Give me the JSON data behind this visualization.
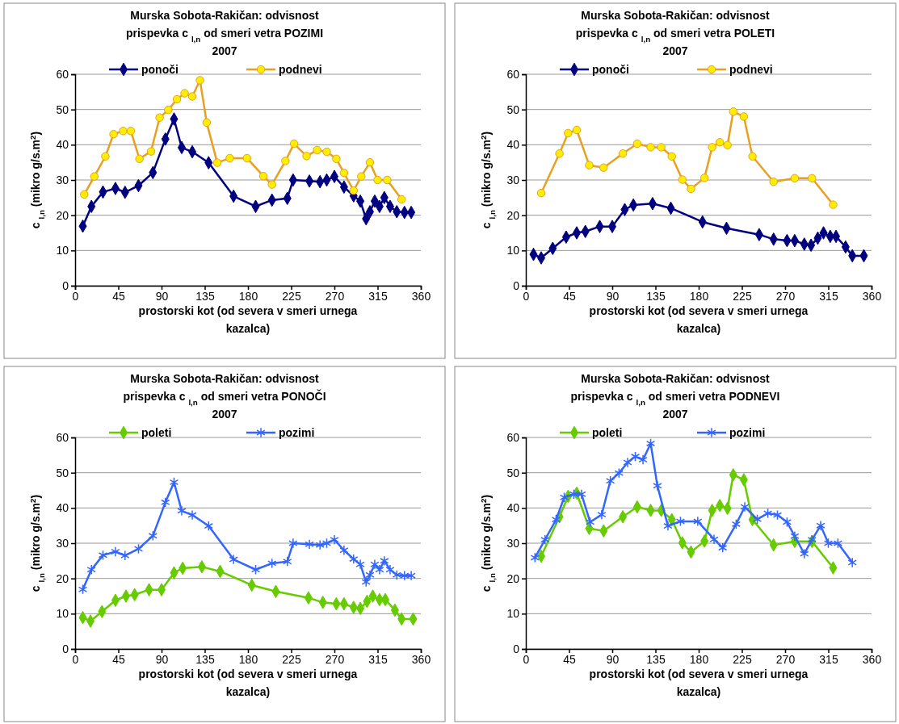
{
  "chart_data": [
    {
      "type": "line",
      "title": "Murska Sobota-Rakičan: odvisnost prispevka c $_{l,n}$ od smeri vetra POZIMI 2007",
      "xlabel": "prostorski kot (od severa v smeri urnega kazalca)",
      "ylabel": "c $_{l,n}$ (mikro g/s.m$^{2}$)",
      "xlim": [
        0,
        360
      ],
      "xticks": [
        0,
        45,
        90,
        135,
        180,
        225,
        270,
        315,
        360
      ],
      "ylim": [
        0,
        60
      ],
      "yticks": [
        0,
        10,
        20,
        30,
        40,
        50,
        60
      ],
      "grid": "y",
      "legend": "top",
      "series": [
        {
          "name": "ponoči",
          "color": "#000080",
          "marker": "diamond",
          "x": [
            8,
            17,
            29,
            42,
            52,
            66,
            81,
            94,
            103,
            111,
            122,
            139,
            165,
            188,
            205,
            221,
            227,
            244,
            255,
            262,
            270,
            280,
            290,
            297,
            303,
            307,
            312,
            317,
            322,
            328,
            335,
            343,
            350
          ],
          "values": [
            16.9,
            22.5,
            26.6,
            27.6,
            26.5,
            28.4,
            32.1,
            41.6,
            47.3,
            39.2,
            38,
            34.9,
            25.4,
            22.5,
            24.3,
            24.8,
            30,
            29.7,
            29.5,
            30,
            31,
            28,
            25.5,
            24,
            19,
            21,
            24,
            22.5,
            25,
            22.5,
            21,
            20.8,
            20.8
          ]
        },
        {
          "name": "podnevi",
          "color": "#e8a020",
          "marker": "circle",
          "x": [
            9.5,
            20,
            31.5,
            40,
            50,
            58,
            67,
            79,
            88,
            97,
            106,
            114,
            122,
            130,
            137,
            148,
            161,
            179,
            196,
            205,
            219,
            228,
            241,
            252,
            262,
            272,
            280,
            290,
            298,
            307,
            315,
            325,
            340
          ],
          "values": [
            25.9,
            31,
            36.7,
            43,
            43.9,
            43.9,
            36,
            38.1,
            47.7,
            49.9,
            52.9,
            54.6,
            53.7,
            58.3,
            46.3,
            34.9,
            36.2,
            36.2,
            31.1,
            28.7,
            35.4,
            40.3,
            36.8,
            38.5,
            38,
            36,
            32,
            27,
            31,
            35,
            30,
            30,
            24.5
          ]
        }
      ]
    },
    {
      "type": "line",
      "title": "Murska Sobota-Rakičan: odvisnost prispevka c $_{l,n}$ od smeri vetra POLETI 2007",
      "xlabel": "prostorski kot (od severa v smeri urnega kazalca)",
      "ylabel": "c $_{l,n}$ (mikro g/s.m$^{2}$)",
      "xlim": [
        0,
        360
      ],
      "xticks": [
        0,
        45,
        90,
        135,
        180,
        225,
        270,
        315,
        360
      ],
      "ylim": [
        0,
        60
      ],
      "yticks": [
        0,
        10,
        20,
        30,
        40,
        50,
        60
      ],
      "grid": "y",
      "legend": "top",
      "series": [
        {
          "name": "ponoči",
          "color": "#000080",
          "marker": "diamond",
          "x": [
            8,
            16,
            28,
            42,
            53,
            62,
            77,
            90,
            103,
            112,
            132,
            151,
            184,
            209,
            243,
            258,
            272,
            280,
            290,
            297,
            304,
            310,
            317,
            323,
            333,
            340,
            352
          ],
          "values": [
            8.9,
            7.9,
            10.6,
            13.8,
            15,
            15.4,
            16.8,
            16.8,
            21.6,
            22.9,
            23.3,
            22,
            18.1,
            16.3,
            14.5,
            13.2,
            12.8,
            12.8,
            11.8,
            11.5,
            13.5,
            15,
            14,
            14,
            11,
            8.5,
            8.5
          ]
        },
        {
          "name": "podnevi",
          "color": "#e8a020",
          "marker": "circle",
          "x": [
            16,
            35,
            44,
            53,
            66,
            81,
            101,
            116,
            130,
            141,
            152,
            163,
            172,
            186,
            194,
            202,
            210,
            216,
            227,
            236,
            258,
            280,
            298,
            320
          ],
          "values": [
            26.3,
            37.5,
            43.3,
            44.2,
            34.2,
            33.5,
            37.5,
            40.3,
            39.3,
            39.3,
            36.7,
            30.1,
            27.5,
            30.6,
            39.3,
            40.7,
            39.9,
            49.4,
            48,
            36.7,
            29.5,
            30.5,
            30.5,
            23
          ]
        }
      ]
    },
    {
      "type": "line",
      "title": "Murska Sobota-Rakičan: odvisnost prispevka c $_{l,n}$ od smeri vetra PONOČI 2007",
      "xlabel": "prostorski kot (od severa v smeri urnega kazalca)",
      "ylabel": "c $_{l,n}$ (mikro g/s.m$^{2}$)",
      "xlim": [
        0,
        360
      ],
      "xticks": [
        0,
        45,
        90,
        135,
        180,
        225,
        270,
        315,
        360
      ],
      "ylim": [
        0,
        60
      ],
      "yticks": [
        0,
        10,
        20,
        30,
        40,
        50,
        60
      ],
      "grid": "y",
      "legend": "top",
      "series": [
        {
          "name": "poleti",
          "color": "#66cc00",
          "marker": "diamond",
          "x": [
            8,
            16,
            28,
            42,
            53,
            62,
            77,
            90,
            103,
            112,
            132,
            151,
            184,
            209,
            243,
            258,
            272,
            280,
            290,
            297,
            304,
            310,
            317,
            323,
            333,
            340,
            352
          ],
          "values": [
            8.9,
            7.9,
            10.6,
            13.8,
            15,
            15.4,
            16.8,
            16.8,
            21.6,
            22.9,
            23.3,
            22,
            18.1,
            16.3,
            14.5,
            13.2,
            12.8,
            12.8,
            11.8,
            11.5,
            13.5,
            15,
            14,
            14,
            11,
            8.5,
            8.5
          ]
        },
        {
          "name": "pozimi",
          "color": "#3366ff",
          "marker": "cross",
          "x": [
            8,
            17,
            29,
            42,
            52,
            66,
            81,
            94,
            103,
            111,
            122,
            139,
            165,
            188,
            205,
            221,
            227,
            244,
            255,
            262,
            270,
            280,
            290,
            297,
            303,
            307,
            312,
            317,
            322,
            328,
            335,
            343,
            350
          ],
          "values": [
            16.9,
            22.5,
            26.6,
            27.6,
            26.5,
            28.4,
            32.1,
            41.6,
            47.3,
            39.2,
            38,
            34.9,
            25.4,
            22.5,
            24.3,
            24.8,
            30,
            29.7,
            29.5,
            30,
            31,
            28,
            25.5,
            24,
            19,
            21,
            24,
            22.5,
            25,
            22.5,
            21,
            20.8,
            20.8
          ]
        }
      ]
    },
    {
      "type": "line",
      "title": "Murska Sobota-Rakičan: odvisnost prispevka c $_{l,n}$ od smeri vetra PODNEVI 2007",
      "xlabel": "prostorski kot (od severa v smeri urnega kazalca)",
      "ylabel": "c $_{l,n}$ (mikro g/s.m$^{2}$)",
      "xlim": [
        0,
        360
      ],
      "xticks": [
        0,
        45,
        90,
        135,
        180,
        225,
        270,
        315,
        360
      ],
      "ylim": [
        0,
        60
      ],
      "yticks": [
        0,
        10,
        20,
        30,
        40,
        50,
        60
      ],
      "grid": "y",
      "legend": "top",
      "series": [
        {
          "name": "poleti",
          "color": "#66cc00",
          "marker": "diamond",
          "x": [
            16,
            35,
            44,
            53,
            66,
            81,
            101,
            116,
            130,
            141,
            152,
            163,
            172,
            186,
            194,
            202,
            210,
            216,
            227,
            236,
            258,
            280,
            298,
            320
          ],
          "values": [
            26.3,
            37.5,
            43.3,
            44.2,
            34.2,
            33.5,
            37.5,
            40.3,
            39.3,
            39.3,
            36.7,
            30.1,
            27.5,
            30.6,
            39.3,
            40.7,
            39.9,
            49.4,
            48,
            36.7,
            29.5,
            30.5,
            30.5,
            23
          ]
        },
        {
          "name": "pozimi",
          "color": "#3366ff",
          "marker": "cross",
          "x": [
            9.5,
            20,
            31.5,
            40,
            50,
            58,
            67,
            79,
            88,
            97,
            106,
            114,
            122,
            130,
            137,
            148,
            161,
            179,
            196,
            205,
            219,
            228,
            241,
            252,
            262,
            272,
            280,
            290,
            298,
            307,
            315,
            325,
            340
          ],
          "values": [
            25.9,
            31,
            36.7,
            43,
            43.9,
            43.9,
            36,
            38.1,
            47.7,
            49.9,
            52.9,
            54.6,
            53.7,
            58.3,
            46.3,
            34.9,
            36.2,
            36.2,
            31.1,
            28.7,
            35.4,
            40.3,
            36.8,
            38.5,
            38,
            36,
            32,
            27,
            31,
            35,
            30,
            30,
            24.5
          ]
        }
      ]
    }
  ]
}
